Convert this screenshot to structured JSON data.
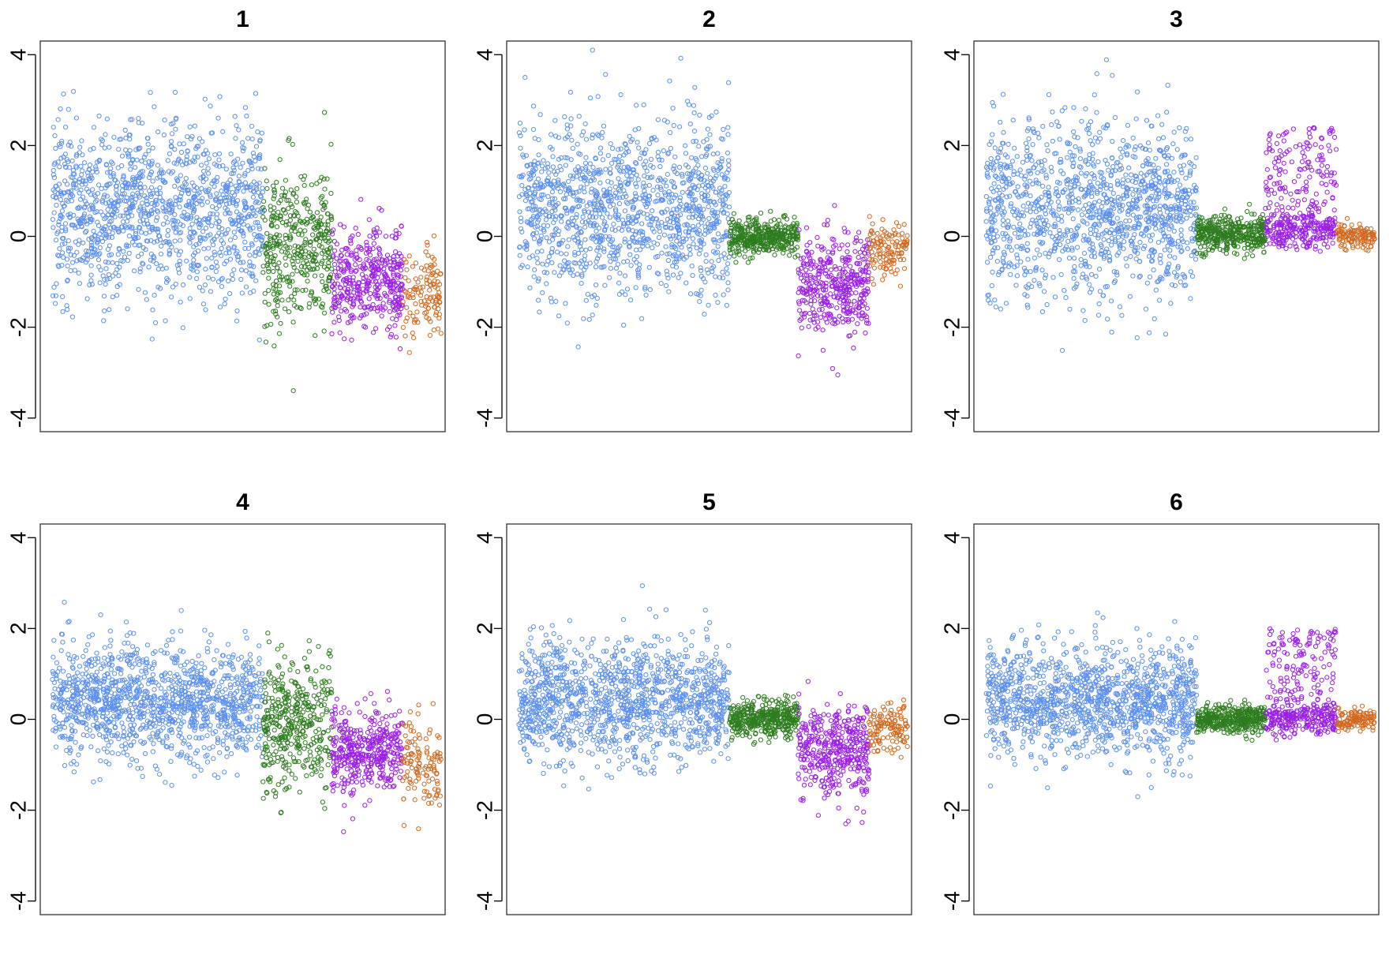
{
  "chart_data": [
    {
      "type": "scatter",
      "title": "1",
      "ylim": [
        -4.3,
        4.3
      ],
      "yticks": [
        -4,
        -2,
        0,
        2,
        4
      ],
      "xticks_shown": false,
      "series": [
        {
          "color": "#5B8FF0",
          "count": 1250,
          "x_range": [
            0,
            1
          ],
          "y_mean": 0.6,
          "y_sd": 0.95
        },
        {
          "color": "#2E7D1F",
          "count": 400,
          "x_range": [
            0,
            1
          ],
          "y_mean": -0.2,
          "y_sd": 0.85
        },
        {
          "color": "#9B1FE8",
          "count": 400,
          "x_range": [
            0,
            1
          ],
          "y_mean": -1.0,
          "y_sd": 0.55
        },
        {
          "color": "#D2691E",
          "count": 120,
          "x_range": [
            0,
            1
          ],
          "y_mean": -1.2,
          "y_sd": 0.55
        }
      ]
    },
    {
      "type": "scatter",
      "title": "2",
      "ylim": [
        -4.3,
        4.3
      ],
      "yticks": [
        -4,
        -2,
        0,
        2,
        4
      ],
      "xticks_shown": false,
      "series": [
        {
          "color": "#5B8FF0",
          "count": 1250,
          "x_range": [
            0,
            1
          ],
          "y_mean": 0.6,
          "y_sd": 0.95
        },
        {
          "color": "#2E7D1F",
          "count": 400,
          "x_range": [
            0,
            1
          ],
          "y_mean": 0.0,
          "y_sd": 0.2
        },
        {
          "color": "#9B1FE8",
          "count": 400,
          "x_range": [
            0,
            1
          ],
          "y_mean": -1.0,
          "y_sd": 0.55
        },
        {
          "color": "#D2691E",
          "count": 120,
          "x_range": [
            0,
            1
          ],
          "y_mean": -0.3,
          "y_sd": 0.3
        }
      ]
    },
    {
      "type": "scatter",
      "title": "3",
      "ylim": [
        -4.3,
        4.3
      ],
      "yticks": [
        -4,
        -2,
        0,
        2,
        4
      ],
      "xticks_shown": false,
      "series": [
        {
          "color": "#5B8FF0",
          "count": 1250,
          "x_range": [
            0,
            1
          ],
          "y_mean": 0.6,
          "y_sd": 0.95
        },
        {
          "color": "#2E7D1F",
          "count": 400,
          "x_range": [
            0,
            1
          ],
          "y_mean": 0.05,
          "y_sd": 0.2
        },
        {
          "color": "#9B1FE8",
          "count": 400,
          "x_range": [
            0,
            1
          ],
          "y_mean": 0.1,
          "y_sd": 0.2,
          "upper_spread": 2.3
        },
        {
          "color": "#D2691E",
          "count": 120,
          "x_range": [
            0,
            1
          ],
          "y_mean": 0.0,
          "y_sd": 0.12
        }
      ]
    },
    {
      "type": "scatter",
      "title": "4",
      "ylim": [
        -4.3,
        4.3
      ],
      "yticks": [
        -4,
        -2,
        0,
        2,
        4
      ],
      "xticks_shown": false,
      "series": [
        {
          "color": "#5B8FF0",
          "count": 1250,
          "x_range": [
            0,
            1
          ],
          "y_mean": 0.4,
          "y_sd": 0.65
        },
        {
          "color": "#2E7D1F",
          "count": 400,
          "x_range": [
            0,
            1
          ],
          "y_mean": -0.1,
          "y_sd": 0.7
        },
        {
          "color": "#9B1FE8",
          "count": 400,
          "x_range": [
            0,
            1
          ],
          "y_mean": -0.7,
          "y_sd": 0.45
        },
        {
          "color": "#D2691E",
          "count": 120,
          "x_range": [
            0,
            1
          ],
          "y_mean": -1.0,
          "y_sd": 0.55
        }
      ]
    },
    {
      "type": "scatter",
      "title": "5",
      "ylim": [
        -4.3,
        4.3
      ],
      "yticks": [
        -4,
        -2,
        0,
        2,
        4
      ],
      "xticks_shown": false,
      "series": [
        {
          "color": "#5B8FF0",
          "count": 1250,
          "x_range": [
            0,
            1
          ],
          "y_mean": 0.4,
          "y_sd": 0.65
        },
        {
          "color": "#2E7D1F",
          "count": 400,
          "x_range": [
            0,
            1
          ],
          "y_mean": 0.0,
          "y_sd": 0.2
        },
        {
          "color": "#9B1FE8",
          "count": 400,
          "x_range": [
            0,
            1
          ],
          "y_mean": -0.7,
          "y_sd": 0.5
        },
        {
          "color": "#D2691E",
          "count": 120,
          "x_range": [
            0,
            1
          ],
          "y_mean": -0.2,
          "y_sd": 0.25
        }
      ]
    },
    {
      "type": "scatter",
      "title": "6",
      "ylim": [
        -4.3,
        4.3
      ],
      "yticks": [
        -4,
        -2,
        0,
        2,
        4
      ],
      "xticks_shown": false,
      "series": [
        {
          "color": "#5B8FF0",
          "count": 1250,
          "x_range": [
            0,
            1
          ],
          "y_mean": 0.4,
          "y_sd": 0.6
        },
        {
          "color": "#2E7D1F",
          "count": 400,
          "x_range": [
            0,
            1
          ],
          "y_mean": 0.0,
          "y_sd": 0.15
        },
        {
          "color": "#9B1FE8",
          "count": 400,
          "x_range": [
            0,
            1
          ],
          "y_mean": 0.0,
          "y_sd": 0.2,
          "upper_spread": 2.0
        },
        {
          "color": "#D2691E",
          "count": 120,
          "x_range": [
            0,
            1
          ],
          "y_mean": 0.0,
          "y_sd": 0.12
        }
      ]
    }
  ]
}
